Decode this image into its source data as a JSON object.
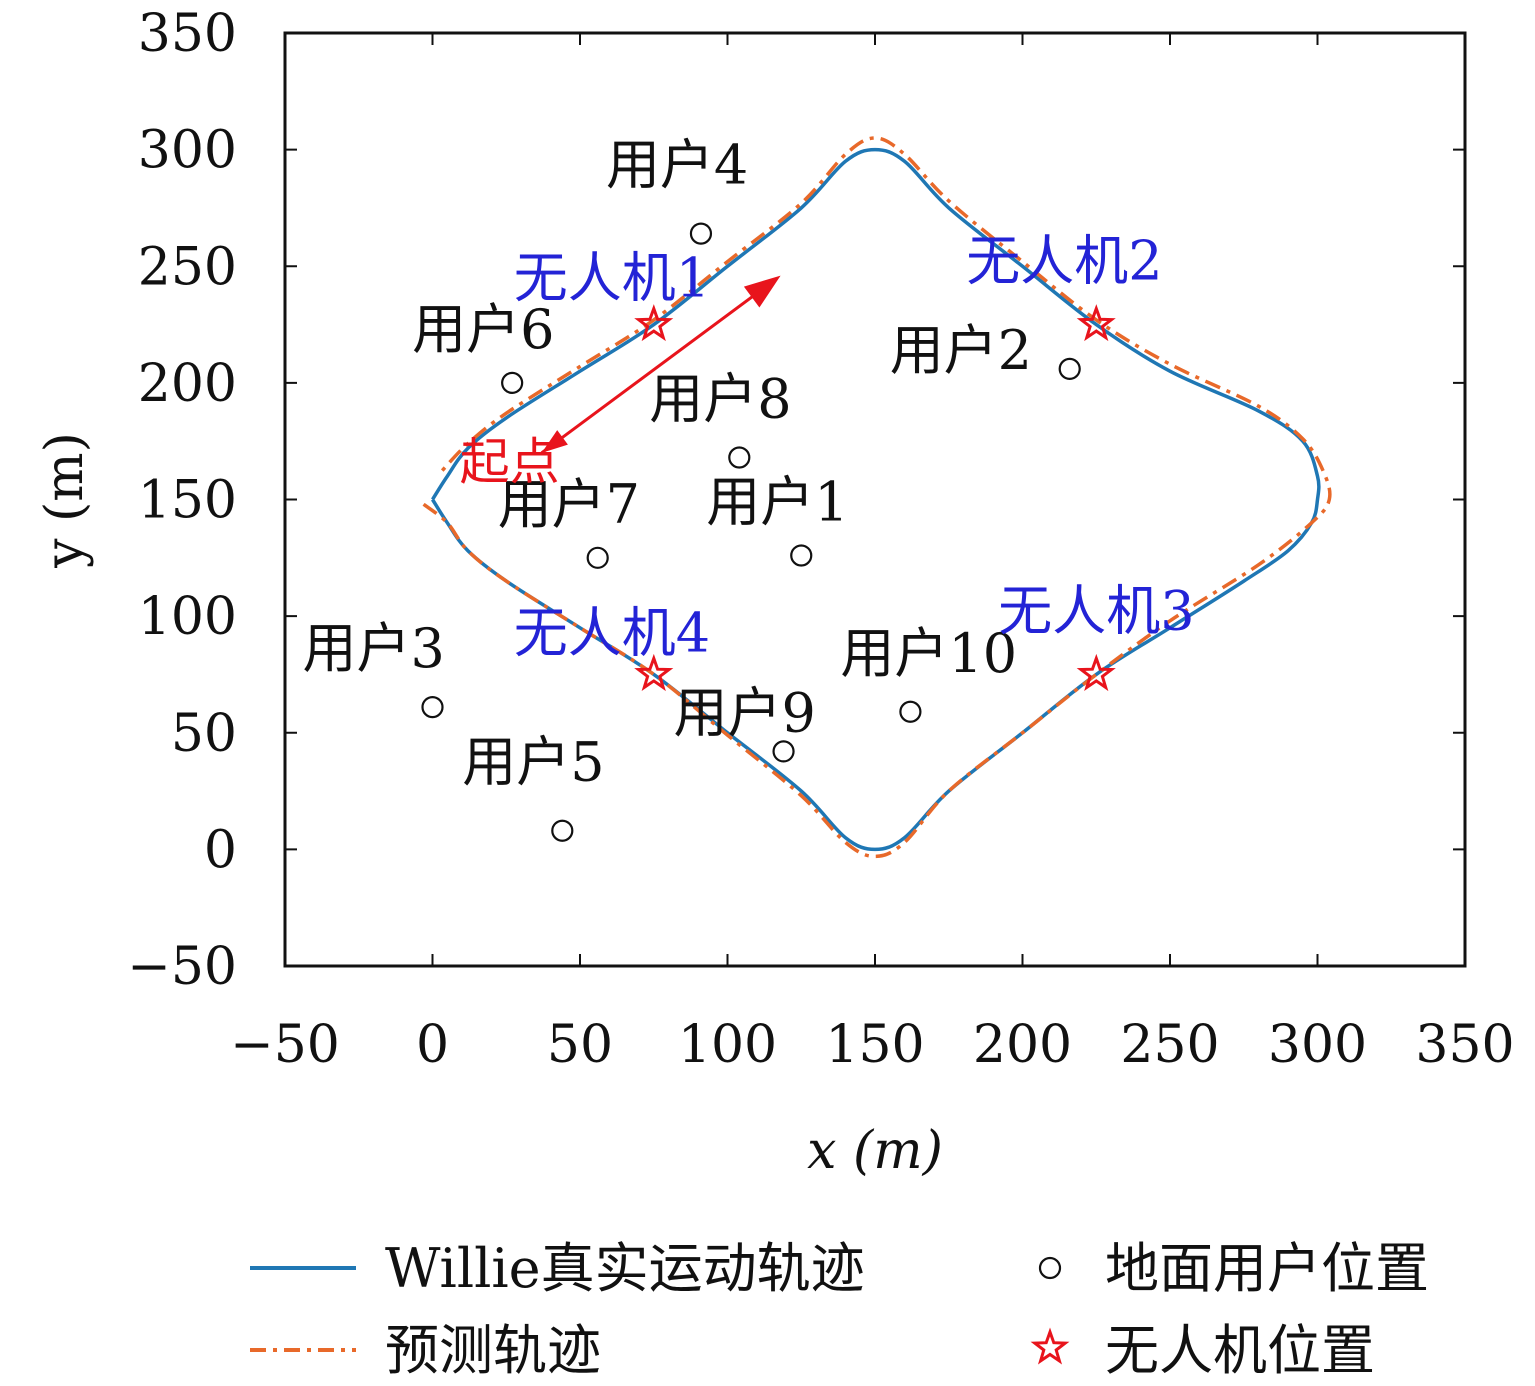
{
  "chart_data": {
    "type": "line",
    "xlabel": "x (m)",
    "ylabel": "y (m)",
    "xlim": [
      -50,
      350
    ],
    "ylim": [
      -50,
      350
    ],
    "xticks": [
      -50,
      0,
      50,
      100,
      150,
      200,
      250,
      300,
      350
    ],
    "yticks": [
      -50,
      0,
      50,
      100,
      150,
      200,
      250,
      300,
      350
    ],
    "xtick_labels": [
      "−50",
      "0",
      "50",
      "100",
      "150",
      "200",
      "250",
      "300",
      "350"
    ],
    "ytick_labels": [
      "−50",
      "0",
      "50",
      "100",
      "150",
      "200",
      "250",
      "300",
      "350"
    ],
    "grid": false,
    "series": [
      {
        "name": "Willie真实运动轨迹",
        "color": "#1f77b4",
        "style": "solid",
        "points": [
          [
            0,
            150
          ],
          [
            5,
            160
          ],
          [
            12,
            172
          ],
          [
            25,
            185
          ],
          [
            50,
            205
          ],
          [
            75,
            225
          ],
          [
            100,
            250
          ],
          [
            125,
            275
          ],
          [
            140,
            295
          ],
          [
            150,
            300
          ],
          [
            160,
            295
          ],
          [
            175,
            275
          ],
          [
            200,
            250
          ],
          [
            225,
            225
          ],
          [
            250,
            205
          ],
          [
            280,
            188
          ],
          [
            295,
            175
          ],
          [
            300,
            160
          ],
          [
            300,
            150
          ],
          [
            298,
            140
          ],
          [
            290,
            128
          ],
          [
            275,
            115
          ],
          [
            250,
            95
          ],
          [
            225,
            75
          ],
          [
            200,
            50
          ],
          [
            175,
            25
          ],
          [
            160,
            5
          ],
          [
            150,
            0
          ],
          [
            140,
            5
          ],
          [
            125,
            25
          ],
          [
            100,
            50
          ],
          [
            75,
            75
          ],
          [
            50,
            95
          ],
          [
            25,
            115
          ],
          [
            12,
            128
          ],
          [
            5,
            140
          ],
          [
            0,
            150
          ]
        ]
      },
      {
        "name": "预测轨迹",
        "color": "#e8692a",
        "style": "dashdot",
        "points": [
          [
            -3,
            148
          ],
          [
            5,
            140
          ],
          [
            12,
            128
          ],
          [
            25,
            115
          ],
          [
            50,
            95
          ],
          [
            75,
            75
          ],
          [
            100,
            49
          ],
          [
            125,
            23
          ],
          [
            140,
            3
          ],
          [
            150,
            -3
          ],
          [
            160,
            3
          ],
          [
            175,
            25
          ],
          [
            200,
            50
          ],
          [
            225,
            75
          ],
          [
            250,
            98
          ],
          [
            280,
            122
          ],
          [
            298,
            140
          ],
          [
            304,
            150
          ],
          [
            302,
            162
          ],
          [
            295,
            176
          ],
          [
            280,
            190
          ],
          [
            250,
            208
          ],
          [
            225,
            227
          ],
          [
            200,
            252
          ],
          [
            175,
            278
          ],
          [
            160,
            298
          ],
          [
            150,
            305
          ],
          [
            140,
            298
          ],
          [
            125,
            277
          ],
          [
            100,
            252
          ],
          [
            75,
            227
          ],
          [
            50,
            207
          ],
          [
            25,
            187
          ],
          [
            12,
            174
          ],
          [
            3,
            162
          ]
        ]
      }
    ],
    "users": [
      {
        "label": "用户1",
        "x": 125,
        "y": 126
      },
      {
        "label": "用户2",
        "x": 216,
        "y": 206
      },
      {
        "label": "用户3",
        "x": 0,
        "y": 61
      },
      {
        "label": "用户4",
        "x": 91,
        "y": 264
      },
      {
        "label": "用户5",
        "x": 44,
        "y": 8
      },
      {
        "label": "用户6",
        "x": 27,
        "y": 200
      },
      {
        "label": "用户7",
        "x": 56,
        "y": 125
      },
      {
        "label": "用户8",
        "x": 104,
        "y": 168
      },
      {
        "label": "用户9",
        "x": 119,
        "y": 42
      },
      {
        "label": "用户10",
        "x": 162,
        "y": 59
      }
    ],
    "uavs": [
      {
        "label": "无人机1",
        "x": 75,
        "y": 225
      },
      {
        "label": "无人机2",
        "x": 225,
        "y": 225
      },
      {
        "label": "无人机3",
        "x": 225,
        "y": 75
      },
      {
        "label": "无人机4",
        "x": 75,
        "y": 75
      }
    ],
    "annotation": {
      "text": "起点",
      "arrow_from": [
        37,
        170
      ],
      "arrow_to": [
        118,
        246
      ]
    },
    "legend": {
      "position": "bottom",
      "entries": [
        {
          "label": "Willie真实运动轨迹",
          "marker": "line"
        },
        {
          "label": "地面用户位置",
          "marker": "circle"
        },
        {
          "label": "预测轨迹",
          "marker": "dashdot"
        },
        {
          "label": "无人机位置",
          "marker": "star"
        }
      ]
    },
    "colors": {
      "true_track": "#1f77b4",
      "pred_track": "#e8692a",
      "uav_star": "#e8141c",
      "uav_label": "#2323d6",
      "start": "#e8141c"
    }
  }
}
